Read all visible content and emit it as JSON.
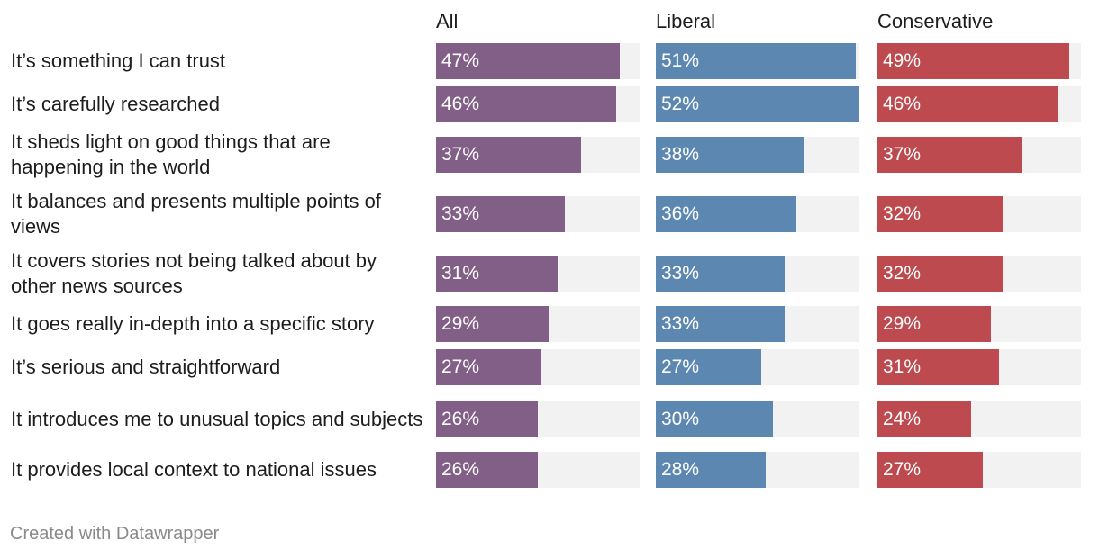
{
  "chart_data": {
    "type": "bar",
    "orientation": "horizontal",
    "value_suffix": "%",
    "xlim": [
      0,
      52
    ],
    "categories": [
      "It’s something I can trust",
      "It’s carefully researched",
      "It sheds light on good things that are happening in the world",
      "It balances and presents multiple points of views",
      "It covers stories not being talked about by other news sources",
      "It goes really in-depth into a specific story",
      "It’s serious and straightforward",
      "It introduces me to unusual topics and subjects",
      "It provides local context to national issues"
    ],
    "series": [
      {
        "name": "All",
        "color": "#825f87",
        "values": [
          47,
          46,
          37,
          33,
          31,
          29,
          27,
          26,
          26
        ]
      },
      {
        "name": "Liberal",
        "color": "#5b87b0",
        "values": [
          51,
          52,
          38,
          36,
          33,
          33,
          27,
          30,
          28
        ]
      },
      {
        "name": "Conservative",
        "color": "#bc4a4f",
        "values": [
          49,
          46,
          37,
          32,
          32,
          29,
          31,
          24,
          27
        ]
      }
    ],
    "track_color": "#f2f2f2"
  },
  "footer": {
    "credit": "Created with Datawrapper"
  }
}
